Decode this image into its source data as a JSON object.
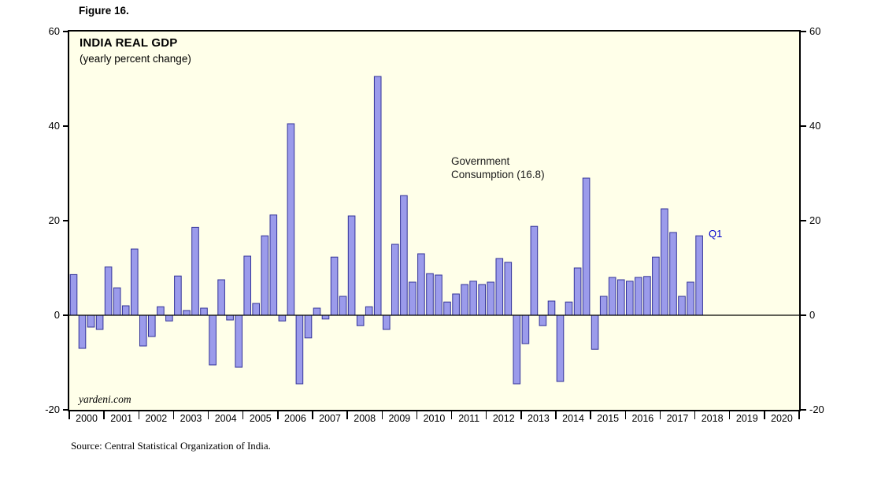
{
  "figure_label": "Figure 16.",
  "source": "Source: Central Statistical Organization of India.",
  "chart_data": {
    "type": "bar",
    "title": "INDIA REAL GDP",
    "subtitle": "(yearly percent change)",
    "annotation": "Government\nConsumption (16.8)",
    "latest_point_label": "Q1",
    "latest_value": 16.8,
    "watermark": "yardeni.com",
    "ylim": [
      -20,
      60
    ],
    "yticks": [
      60,
      40,
      20,
      0,
      -20
    ],
    "x_year_labels": [
      "2000",
      "2001",
      "2002",
      "2003",
      "2004",
      "2005",
      "2006",
      "2007",
      "2008",
      "2009",
      "2010",
      "2011",
      "2012",
      "2013",
      "2014",
      "2015",
      "2016",
      "2017",
      "2018",
      "2019",
      "2020"
    ],
    "start_year": 2000,
    "start_quarter": 1,
    "frequency": "quarterly",
    "grid": false,
    "values": [
      8.6,
      -7.0,
      -2.5,
      -3.0,
      10.2,
      5.8,
      2.0,
      14.0,
      -6.5,
      -4.5,
      1.8,
      -1.2,
      8.3,
      1.0,
      18.6,
      1.5,
      -10.5,
      7.5,
      -1.0,
      -11.0,
      12.5,
      2.5,
      16.8,
      21.2,
      -1.2,
      40.5,
      -14.5,
      -4.8,
      1.5,
      -0.8,
      12.3,
      4.0,
      21.0,
      -2.2,
      1.8,
      50.5,
      -3.0,
      15.0,
      25.3,
      7.0,
      13.0,
      8.8,
      8.5,
      2.8,
      4.5,
      6.5,
      7.2,
      6.5,
      7.0,
      12.0,
      11.2,
      -14.5,
      -6.0,
      18.8,
      -2.2,
      3.0,
      -14.0,
      2.8,
      10.0,
      29.0,
      -7.2,
      4.0,
      8.0,
      7.5,
      7.2,
      8.0,
      8.2,
      12.3,
      22.5,
      17.5,
      4.0,
      7.0,
      16.8
    ],
    "colors": {
      "bar_fill": "#9B9BEB",
      "bar_stroke": "#333399",
      "plot_bg": "#FFFFE9",
      "accent_blue": "#0000CC",
      "axis": "#000000"
    }
  }
}
